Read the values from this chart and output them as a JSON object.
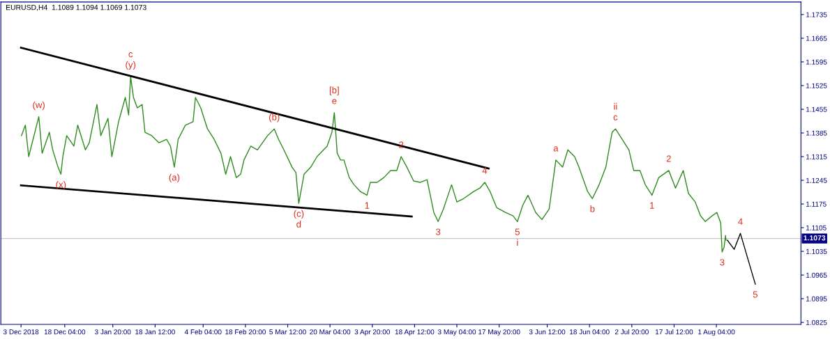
{
  "chart_data": {
    "type": "line",
    "title": "EURUSD,H4  1.1089 1.1094 1.1069 1.1073",
    "xlim": [
      "2018-11-26T00:00",
      "2019-08-30T12:00"
    ],
    "ylim": [
      1.0819,
      1.1772
    ],
    "xticks": [
      {
        "value": "2018-12-03T00:00",
        "label": "3 Dec 2018"
      },
      {
        "value": "2018-12-18T04:00",
        "label": "18 Dec 04:00"
      },
      {
        "value": "2019-01-03T20:00",
        "label": "3 Jan 20:00"
      },
      {
        "value": "2019-01-18T12:00",
        "label": "18 Jan 12:00"
      },
      {
        "value": "2019-02-04T04:00",
        "label": "4 Feb 04:00"
      },
      {
        "value": "2019-02-18T20:00",
        "label": "18 Feb 20:00"
      },
      {
        "value": "2019-03-05T12:00",
        "label": "5 Mar 12:00"
      },
      {
        "value": "2019-03-20T04:00",
        "label": "20 Mar 04:00"
      },
      {
        "value": "2019-04-03T20:00",
        "label": "3 Apr 20:00"
      },
      {
        "value": "2019-04-18T12:00",
        "label": "18 Apr 12:00"
      },
      {
        "value": "2019-05-03T04:00",
        "label": "3 May 04:00"
      },
      {
        "value": "2019-05-17T20:00",
        "label": "17 May 20:00"
      },
      {
        "value": "2019-06-03T12:00",
        "label": "3 Jun 12:00"
      },
      {
        "value": "2019-06-18T04:00",
        "label": "18 Jun 04:00"
      },
      {
        "value": "2019-07-02T20:00",
        "label": "2 Jul 20:00"
      },
      {
        "value": "2019-07-17T12:00",
        "label": "17 Jul 12:00"
      },
      {
        "value": "2019-08-01T04:00",
        "label": "1 Aug 04:00"
      }
    ],
    "yticks": [
      1.0825,
      1.0895,
      1.0965,
      1.1035,
      1.1105,
      1.1175,
      1.1245,
      1.1315,
      1.1385,
      1.1455,
      1.1525,
      1.1595,
      1.1665,
      1.1735
    ],
    "grid": false,
    "legend": false,
    "marker": "none",
    "line_style": "solid",
    "series": [
      {
        "color": "#2e8b1e",
        "x": [
          "2018-12-03T04:00",
          "2018-12-04T12:00",
          "2018-12-05T16:00",
          "2018-12-09T04:00",
          "2018-12-10T08:00",
          "2018-12-12T20:00",
          "2018-12-14T00:00",
          "2018-12-15T20:00",
          "2018-12-16T20:00",
          "2018-12-17T12:00",
          "2018-12-18T20:00",
          "2018-12-21T08:00",
          "2018-12-22T16:00",
          "2018-12-25T08:00",
          "2018-12-26T16:00",
          "2018-12-29T08:00",
          "2018-12-30T16:00",
          "2019-01-02T04:00",
          "2019-01-03T12:00",
          "2019-01-05T20:00",
          "2019-01-08T04:00",
          "2019-01-09T08:00",
          "2019-01-10T00:00",
          "2019-01-11T00:00",
          "2019-01-12T08:00",
          "2019-01-14T00:00",
          "2019-01-15T00:00",
          "2019-01-17T08:00",
          "2019-01-19T20:00",
          "2019-01-22T12:00",
          "2019-01-23T20:00",
          "2019-01-25T04:00",
          "2019-01-26T12:00",
          "2019-01-29T00:00",
          "2019-01-31T16:00",
          "2019-02-01T12:00",
          "2019-02-03T08:00",
          "2019-02-05T16:00",
          "2019-02-08T00:00",
          "2019-02-10T08:00",
          "2019-02-12T00:00",
          "2019-02-13T16:00",
          "2019-02-15T16:00",
          "2019-02-17T04:00",
          "2019-02-18T08:00",
          "2019-02-20T16:00",
          "2019-02-23T00:00",
          "2019-02-26T12:00",
          "2019-02-28T20:00",
          "2019-03-02T08:00",
          "2019-03-04T04:00",
          "2019-03-07T00:00",
          "2019-03-08T08:00",
          "2019-03-09T08:00",
          "2019-03-11T04:00",
          "2019-03-13T12:00",
          "2019-03-15T16:00",
          "2019-03-19T04:00",
          "2019-03-20T20:00",
          "2019-03-21T16:00",
          "2019-03-22T16:00",
          "2019-03-23T20:00",
          "2019-03-25T00:00",
          "2019-03-26T20:00",
          "2019-03-28T12:00",
          "2019-03-30T16:00",
          "2019-04-02T00:00",
          "2019-04-03T04:00",
          "2019-04-05T12:00",
          "2019-04-07T20:00",
          "2019-04-10T04:00",
          "2019-04-12T08:00",
          "2019-04-13T20:00",
          "2019-04-15T20:00",
          "2019-04-18T04:00",
          "2019-04-20T12:00",
          "2019-04-22T20:00",
          "2019-04-25T04:00",
          "2019-04-26T16:00",
          "2019-04-28T12:00",
          "2019-05-01T08:00",
          "2019-05-03T04:00",
          "2019-05-05T12:00",
          "2019-05-09T00:00",
          "2019-05-11T04:00",
          "2019-05-12T20:00",
          "2019-05-14T16:00",
          "2019-05-17T00:00",
          "2019-05-20T00:00",
          "2019-05-22T16:00",
          "2019-05-24T04:00",
          "2019-05-26T00:00",
          "2019-05-27T20:00",
          "2019-05-30T12:00",
          "2019-06-01T16:00",
          "2019-06-04T04:00",
          "2019-06-06T12:00",
          "2019-06-08T20:00",
          "2019-06-10T16:00",
          "2019-06-13T00:00",
          "2019-06-14T12:00",
          "2019-06-17T12:00",
          "2019-06-19T04:00",
          "2019-06-21T12:00",
          "2019-06-23T20:00",
          "2019-06-26T00:00",
          "2019-06-27T04:00",
          "2019-06-29T12:00",
          "2019-07-01T20:00",
          "2019-07-03T12:00",
          "2019-07-05T16:00",
          "2019-07-07T12:00",
          "2019-07-09T20:00",
          "2019-07-12T04:00",
          "2019-07-15T16:00",
          "2019-07-18T00:00",
          "2019-07-20T16:00",
          "2019-07-22T12:00",
          "2019-07-24T20:00",
          "2019-07-26T16:00",
          "2019-07-28T08:00",
          "2019-07-30T16:00",
          "2019-08-01T08:00",
          "2019-08-02T16:00",
          "2019-08-03T04:00",
          "2019-08-03T20:00",
          "2019-08-04T08:00",
          "2019-08-04T12:00"
        ],
        "values": [
          1.1377,
          1.1408,
          1.1315,
          1.1433,
          1.1325,
          1.1387,
          1.1335,
          1.1284,
          1.1263,
          1.1315,
          1.1377,
          1.1346,
          1.1408,
          1.1335,
          1.1356,
          1.1469,
          1.1377,
          1.1428,
          1.1315,
          1.1418,
          1.149,
          1.1438,
          1.1552,
          1.149,
          1.1459,
          1.1469,
          1.1387,
          1.1377,
          1.1356,
          1.1366,
          1.1346,
          1.1284,
          1.1366,
          1.1408,
          1.1418,
          1.149,
          1.1459,
          1.1397,
          1.1366,
          1.1325,
          1.1263,
          1.1315,
          1.1253,
          1.1263,
          1.1305,
          1.1346,
          1.1335,
          1.1377,
          1.1397,
          1.1366,
          1.1335,
          1.1284,
          1.1268,
          1.1177,
          1.1263,
          1.1284,
          1.1315,
          1.1346,
          1.1387,
          1.1445,
          1.1325,
          1.1305,
          1.1305,
          1.1253,
          1.1232,
          1.1212,
          1.1201,
          1.1239,
          1.1239,
          1.1253,
          1.1274,
          1.1274,
          1.1315,
          1.1284,
          1.1243,
          1.1239,
          1.1247,
          1.115,
          1.1123,
          1.116,
          1.1232,
          1.1181,
          1.1191,
          1.1212,
          1.1222,
          1.1239,
          1.1212,
          1.1164,
          1.115,
          1.114,
          1.1123,
          1.1171,
          1.1201,
          1.115,
          1.1129,
          1.116,
          1.1305,
          1.1284,
          1.1335,
          1.1315,
          1.1284,
          1.1212,
          1.1191,
          1.1232,
          1.1284,
          1.1387,
          1.1397,
          1.1366,
          1.1335,
          1.1274,
          1.1274,
          1.1232,
          1.1201,
          1.1253,
          1.1274,
          1.1222,
          1.1274,
          1.1206,
          1.1181,
          1.114,
          1.1123,
          1.114,
          1.115,
          1.1119,
          1.1033,
          1.1047,
          1.1082,
          1.1068
        ]
      },
      {
        "color": "#000000",
        "x": [
          "2018-12-03T00:00",
          "2019-05-14T04:00"
        ],
        "values": [
          1.1637,
          1.128
        ]
      },
      {
        "color": "#000000",
        "x": [
          "2018-12-03T00:00",
          "2019-04-17T12:00"
        ],
        "values": [
          1.123,
          1.1138
        ]
      },
      {
        "color": "#000000",
        "x": [
          "2019-08-05T00:00",
          "2019-08-07T08:00",
          "2019-08-09T12:00",
          "2019-08-14T16:00"
        ],
        "values": [
          1.1068,
          1.1041,
          1.1088,
          1.0938
        ]
      }
    ],
    "ref_lines": [
      {
        "axis": "y",
        "value": 1.1073,
        "label": "1.1073",
        "color": "#c8c8c8"
      }
    ],
    "annotations": [
      {
        "text": "(w)",
        "x": "2018-12-09T04:00",
        "y": 1.1433
      },
      {
        "text": "(x)",
        "x": "2018-12-16T20:00",
        "y": 1.1263
      },
      {
        "text": "(y)",
        "x": "2019-01-10T00:00",
        "y": 1.1552
      },
      {
        "text": "c",
        "x": "2019-01-10T00:00",
        "y": 1.1552
      },
      {
        "text": "(a)",
        "x": "2019-01-25T04:00",
        "y": 1.1284
      },
      {
        "text": "(b)",
        "x": "2019-02-28T20:00",
        "y": 1.1397
      },
      {
        "text": "e",
        "x": "2019-03-21T16:00",
        "y": 1.1445
      },
      {
        "text": "[b]",
        "x": "2019-03-21T16:00",
        "y": 1.1445
      },
      {
        "text": "(c)",
        "x": "2019-03-09T08:00",
        "y": 1.1177
      },
      {
        "text": "d",
        "x": "2019-03-09T08:00",
        "y": 1.1177
      },
      {
        "text": "1",
        "x": "2019-04-02T00:00",
        "y": 1.1201
      },
      {
        "text": "2",
        "x": "2019-04-13T20:00",
        "y": 1.1315
      },
      {
        "text": "3",
        "x": "2019-04-26T16:00",
        "y": 1.1123
      },
      {
        "text": "4",
        "x": "2019-05-12T20:00",
        "y": 1.1239
      },
      {
        "text": "5",
        "x": "2019-05-24T04:00",
        "y": 1.1123
      },
      {
        "text": "i",
        "x": "2019-05-24T04:00",
        "y": 1.1123
      },
      {
        "text": "a",
        "x": "2019-06-06T12:00",
        "y": 1.1305
      },
      {
        "text": "b",
        "x": "2019-06-19T04:00",
        "y": 1.1191
      },
      {
        "text": "c",
        "x": "2019-06-27T04:00",
        "y": 1.1397
      },
      {
        "text": "ii",
        "x": "2019-06-27T04:00",
        "y": 1.1397
      },
      {
        "text": "1",
        "x": "2019-07-09T20:00",
        "y": 1.1201
      },
      {
        "text": "2",
        "x": "2019-07-15T16:00",
        "y": 1.1274
      },
      {
        "text": "3",
        "x": "2019-08-03T04:00",
        "y": 1.1033
      },
      {
        "text": "4",
        "x": "2019-08-09T12:00",
        "y": 1.1088
      },
      {
        "text": "5",
        "x": "2019-08-14T16:00",
        "y": 1.0938
      }
    ]
  }
}
